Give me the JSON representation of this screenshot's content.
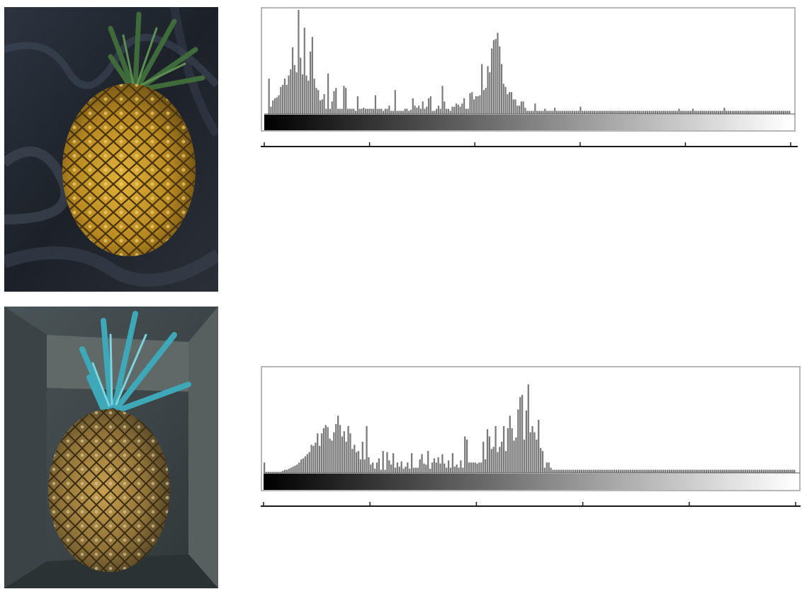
{
  "colors": {
    "bar": "#7a7a7a",
    "frame": "#b7b7b7",
    "axis": "#1a1a1a",
    "background": "#ffffff"
  },
  "photos": [
    {
      "name": "pineapple-photo-dark-background",
      "palette": "warm"
    },
    {
      "name": "pineapple-photo-in-box",
      "palette": "cool"
    }
  ],
  "chart_data": [
    {
      "type": "bar",
      "title": "",
      "xlabel": "",
      "ylabel": "",
      "xlim": [
        0,
        255
      ],
      "ylim": [
        0,
        100
      ],
      "x_ticks": 6,
      "gradient_bar": true,
      "grid": false,
      "legend": "none",
      "series": [
        {
          "values": [
            0,
            0,
            34,
            7,
            13,
            15,
            16,
            18,
            26,
            28,
            34,
            28,
            37,
            43,
            64,
            47,
            40,
            100,
            54,
            38,
            83,
            37,
            32,
            60,
            74,
            34,
            25,
            23,
            13,
            14,
            19,
            5,
            39,
            5,
            12,
            22,
            25,
            5,
            5,
            5,
            27,
            25,
            5,
            5,
            5,
            5,
            3,
            17,
            5,
            5,
            6,
            5,
            5,
            5,
            5,
            5,
            18,
            5,
            5,
            5,
            3,
            5,
            5,
            8,
            3,
            3,
            23,
            3,
            3,
            3,
            3,
            5,
            5,
            3,
            4,
            15,
            8,
            6,
            8,
            5,
            12,
            5,
            7,
            15,
            17,
            3,
            3,
            5,
            8,
            5,
            27,
            12,
            5,
            5,
            3,
            7,
            7,
            10,
            9,
            7,
            10,
            15,
            5,
            5,
            20,
            21,
            14,
            17,
            17,
            18,
            48,
            23,
            25,
            46,
            40,
            63,
            71,
            72,
            78,
            65,
            48,
            29,
            26,
            19,
            21,
            21,
            14,
            14,
            8,
            8,
            12,
            12,
            6,
            3,
            3,
            3,
            3,
            10,
            3,
            3,
            3,
            3,
            5,
            3,
            3,
            3,
            3,
            6,
            3,
            3,
            3,
            3,
            3,
            3,
            3,
            3,
            3,
            3,
            3,
            3,
            7,
            3,
            3,
            3,
            3,
            3,
            3,
            3,
            3,
            3,
            3,
            3,
            3,
            3,
            3,
            3,
            3,
            3,
            3,
            3,
            3,
            3,
            3,
            3,
            3,
            3,
            3,
            3,
            3,
            3,
            3,
            3,
            3,
            3,
            3,
            3,
            3,
            3,
            3,
            3,
            3,
            3,
            3,
            3,
            3,
            3,
            3,
            3,
            3,
            3,
            5,
            3,
            3,
            3,
            3,
            3,
            3,
            5,
            3,
            3,
            3,
            3,
            3,
            3,
            3,
            3,
            3,
            3,
            3,
            3,
            3,
            3,
            3,
            6,
            3,
            3,
            3,
            3,
            3,
            3,
            3,
            3,
            3,
            3,
            3,
            3,
            3,
            3,
            3,
            3,
            3,
            3,
            3,
            3,
            3,
            3,
            3,
            3,
            3,
            3,
            3,
            3,
            3,
            3,
            3,
            3,
            3
          ]
        }
      ]
    },
    {
      "type": "bar",
      "title": "",
      "xlabel": "",
      "ylabel": "",
      "xlim": [
        0,
        255
      ],
      "ylim": [
        0,
        100
      ],
      "x_ticks": 6,
      "gradient_bar": true,
      "grid": false,
      "legend": "none",
      "series": [
        {
          "values": [
            10,
            1,
            1,
            1,
            1,
            1,
            1,
            1,
            1,
            2,
            3,
            3,
            4,
            5,
            6,
            7,
            8,
            10,
            13,
            14,
            16,
            18,
            20,
            27,
            26,
            29,
            38,
            26,
            38,
            43,
            46,
            44,
            33,
            31,
            39,
            47,
            55,
            46,
            35,
            40,
            30,
            45,
            38,
            23,
            27,
            20,
            21,
            13,
            30,
            13,
            45,
            15,
            8,
            10,
            4,
            10,
            14,
            3,
            21,
            3,
            20,
            12,
            8,
            19,
            5,
            10,
            6,
            11,
            4,
            6,
            10,
            4,
            19,
            5,
            5,
            5,
            13,
            18,
            9,
            8,
            21,
            4,
            10,
            14,
            10,
            15,
            9,
            18,
            9,
            5,
            12,
            5,
            19,
            6,
            8,
            5,
            12,
            5,
            35,
            32,
            10,
            10,
            10,
            10,
            9,
            10,
            10,
            30,
            13,
            42,
            35,
            23,
            25,
            45,
            20,
            25,
            30,
            45,
            21,
            43,
            55,
            43,
            31,
            34,
            61,
            73,
            75,
            32,
            60,
            85,
            39,
            45,
            39,
            32,
            51,
            24,
            21,
            5,
            10,
            10,
            5,
            3,
            3,
            3,
            3,
            3,
            3,
            3,
            3,
            3,
            3,
            3,
            3,
            3,
            3,
            3,
            3,
            3,
            3,
            3,
            3,
            3,
            3,
            3,
            3,
            3,
            3,
            3,
            3,
            3,
            3,
            3,
            3,
            3,
            3,
            3,
            3,
            3,
            3,
            3,
            3,
            3,
            3,
            3,
            3,
            3,
            3,
            3,
            3,
            3,
            3,
            3,
            3,
            3,
            3,
            3,
            3,
            3,
            3,
            3,
            3,
            3,
            3,
            3,
            3,
            3,
            3,
            3,
            3,
            3,
            3,
            3,
            3,
            3,
            3,
            3,
            3,
            3,
            3,
            3,
            3,
            3,
            3,
            3,
            3,
            3,
            3,
            3,
            3,
            3,
            3,
            3,
            3,
            3,
            3,
            3,
            3,
            3,
            3,
            3,
            3,
            3,
            3,
            3,
            3,
            3,
            3,
            3,
            3,
            3,
            3,
            3,
            3,
            3,
            3,
            3,
            3,
            3,
            3,
            3
          ]
        }
      ]
    }
  ]
}
